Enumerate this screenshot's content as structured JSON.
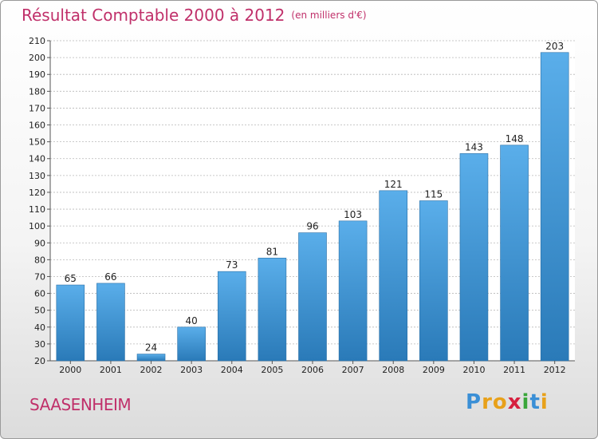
{
  "chart_data": {
    "type": "bar",
    "title": "Résultat Comptable 2000 à 2012",
    "subtitle": "(en milliers d'€)",
    "categories": [
      "2000",
      "2001",
      "2002",
      "2003",
      "2004",
      "2005",
      "2006",
      "2007",
      "2008",
      "2009",
      "2010",
      "2011",
      "2012"
    ],
    "values": [
      65,
      66,
      24,
      40,
      73,
      81,
      96,
      103,
      121,
      115,
      143,
      148,
      203
    ],
    "ylim": [
      20,
      210
    ],
    "yticks": [
      20,
      30,
      40,
      50,
      60,
      70,
      80,
      90,
      100,
      110,
      120,
      130,
      140,
      150,
      160,
      170,
      180,
      190,
      200,
      210
    ],
    "grid": true,
    "xlabel": "",
    "ylabel": "",
    "bar_color_top": "#5aaeea",
    "bar_color_bottom": "#2a7ab8"
  },
  "footer": {
    "town": "SAASENHEIM",
    "logo_letters": [
      "P",
      "r",
      "o",
      "x",
      "i",
      "t",
      "i"
    ],
    "logo_colors": [
      "#3a8fd6",
      "#e8a11a",
      "#e8a11a",
      "#d6203f",
      "#3aa63a",
      "#3a8fd6",
      "#e8a11a"
    ]
  }
}
